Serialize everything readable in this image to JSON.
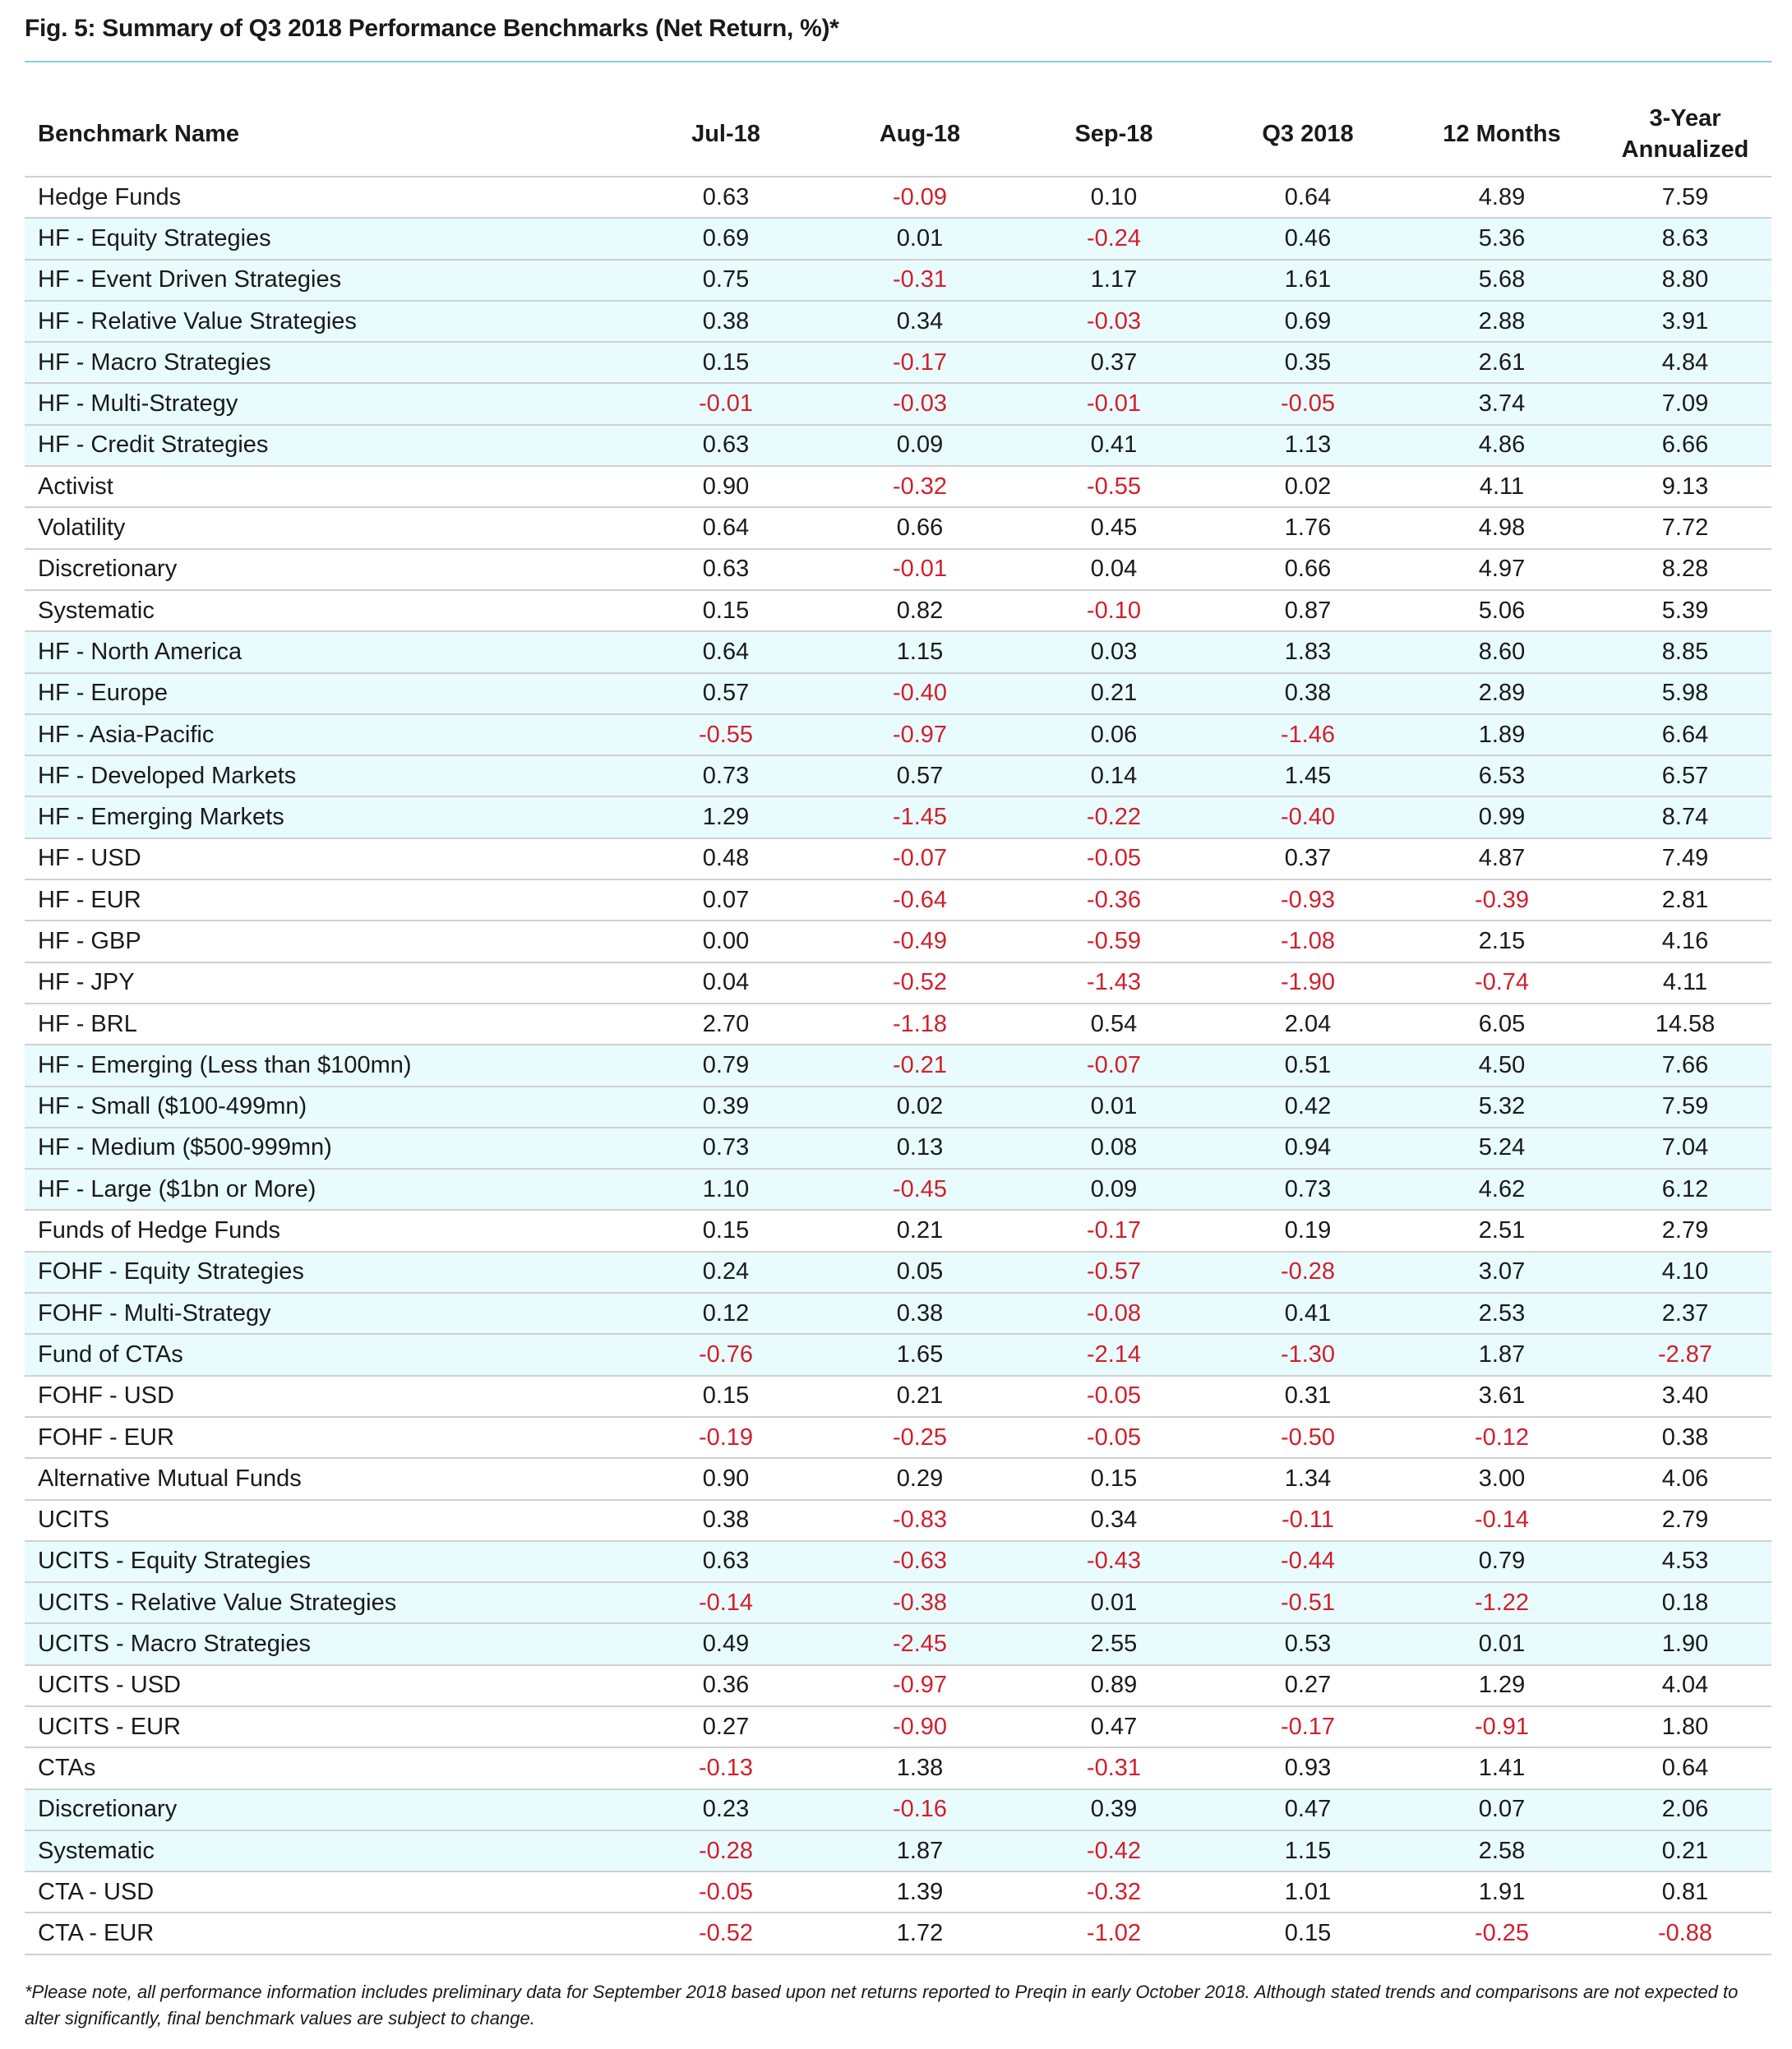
{
  "figure": {
    "title": "Fig. 5: Summary of Q3 2018 Performance Benchmarks (Net Return, %)*",
    "footnote": "*Please note, all performance information includes preliminary data for September 2018 based upon net returns reported to Preqin in early October 2018. Although stated trends and comparisons are not expected to alter significantly, final benchmark values are subject to change."
  },
  "colors": {
    "category_fill": "#80f0f8",
    "light_row": "#e8fbfd",
    "negative_text": "#d21f2b",
    "rule": "#7fd3e0"
  },
  "chart_data": {
    "type": "table",
    "title": "Fig. 5: Summary of Q3 2018 Performance Benchmarks (Net Return, %)*",
    "columns": [
      "Benchmark Name",
      "Jul-18",
      "Aug-18",
      "Sep-18",
      "Q3 2018",
      "12 Months",
      "3-Year Annualized"
    ],
    "header_lines": {
      "name": "Benchmark Name",
      "jul": "Jul-18",
      "aug": "Aug-18",
      "sep": "Sep-18",
      "q3": "Q3 2018",
      "m12": "12 Months",
      "y3_line1": "3-Year",
      "y3_line2": "Annualized"
    },
    "rows": [
      {
        "name": "Hedge Funds",
        "type": "category",
        "values": [
          "0.63",
          "-0.09",
          "0.10",
          "0.64",
          "4.89",
          "7.59"
        ]
      },
      {
        "name": "HF - Equity Strategies",
        "type": "light",
        "values": [
          "0.69",
          "0.01",
          "-0.24",
          "0.46",
          "5.36",
          "8.63"
        ]
      },
      {
        "name": "HF - Event Driven Strategies",
        "type": "light",
        "values": [
          "0.75",
          "-0.31",
          "1.17",
          "1.61",
          "5.68",
          "8.80"
        ]
      },
      {
        "name": "HF - Relative Value Strategies",
        "type": "light",
        "values": [
          "0.38",
          "0.34",
          "-0.03",
          "0.69",
          "2.88",
          "3.91"
        ]
      },
      {
        "name": "HF - Macro Strategies",
        "type": "light",
        "values": [
          "0.15",
          "-0.17",
          "0.37",
          "0.35",
          "2.61",
          "4.84"
        ]
      },
      {
        "name": "HF - Multi-Strategy",
        "type": "light",
        "values": [
          "-0.01",
          "-0.03",
          "-0.01",
          "-0.05",
          "3.74",
          "7.09"
        ]
      },
      {
        "name": "HF - Credit Strategies",
        "type": "light",
        "values": [
          "0.63",
          "0.09",
          "0.41",
          "1.13",
          "4.86",
          "6.66"
        ]
      },
      {
        "name": "Activist",
        "type": "white",
        "values": [
          "0.90",
          "-0.32",
          "-0.55",
          "0.02",
          "4.11",
          "9.13"
        ]
      },
      {
        "name": "Volatility",
        "type": "white",
        "values": [
          "0.64",
          "0.66",
          "0.45",
          "1.76",
          "4.98",
          "7.72"
        ]
      },
      {
        "name": "Discretionary",
        "type": "white",
        "values": [
          "0.63",
          "-0.01",
          "0.04",
          "0.66",
          "4.97",
          "8.28"
        ]
      },
      {
        "name": "Systematic",
        "type": "white",
        "values": [
          "0.15",
          "0.82",
          "-0.10",
          "0.87",
          "5.06",
          "5.39"
        ]
      },
      {
        "name": "HF - North America",
        "type": "light",
        "values": [
          "0.64",
          "1.15",
          "0.03",
          "1.83",
          "8.60",
          "8.85"
        ]
      },
      {
        "name": "HF - Europe",
        "type": "light",
        "values": [
          "0.57",
          "-0.40",
          "0.21",
          "0.38",
          "2.89",
          "5.98"
        ]
      },
      {
        "name": "HF - Asia-Pacific",
        "type": "light",
        "values": [
          "-0.55",
          "-0.97",
          "0.06",
          "-1.46",
          "1.89",
          "6.64"
        ]
      },
      {
        "name": "HF - Developed Markets",
        "type": "light",
        "values": [
          "0.73",
          "0.57",
          "0.14",
          "1.45",
          "6.53",
          "6.57"
        ]
      },
      {
        "name": "HF - Emerging Markets",
        "type": "light",
        "values": [
          "1.29",
          "-1.45",
          "-0.22",
          "-0.40",
          "0.99",
          "8.74"
        ]
      },
      {
        "name": "HF - USD",
        "type": "white",
        "values": [
          "0.48",
          "-0.07",
          "-0.05",
          "0.37",
          "4.87",
          "7.49"
        ]
      },
      {
        "name": "HF - EUR",
        "type": "white",
        "values": [
          "0.07",
          "-0.64",
          "-0.36",
          "-0.93",
          "-0.39",
          "2.81"
        ]
      },
      {
        "name": "HF - GBP",
        "type": "white",
        "values": [
          "0.00",
          "-0.49",
          "-0.59",
          "-1.08",
          "2.15",
          "4.16"
        ]
      },
      {
        "name": "HF - JPY",
        "type": "white",
        "values": [
          "0.04",
          "-0.52",
          "-1.43",
          "-1.90",
          "-0.74",
          "4.11"
        ]
      },
      {
        "name": "HF - BRL",
        "type": "white",
        "values": [
          "2.70",
          "-1.18",
          "0.54",
          "2.04",
          "6.05",
          "14.58"
        ]
      },
      {
        "name": "HF - Emerging (Less than $100mn)",
        "type": "light",
        "values": [
          "0.79",
          "-0.21",
          "-0.07",
          "0.51",
          "4.50",
          "7.66"
        ]
      },
      {
        "name": "HF - Small ($100-499mn)",
        "type": "light",
        "values": [
          "0.39",
          "0.02",
          "0.01",
          "0.42",
          "5.32",
          "7.59"
        ]
      },
      {
        "name": "HF - Medium ($500-999mn)",
        "type": "light",
        "values": [
          "0.73",
          "0.13",
          "0.08",
          "0.94",
          "5.24",
          "7.04"
        ]
      },
      {
        "name": "HF - Large ($1bn or More)",
        "type": "light",
        "values": [
          "1.10",
          "-0.45",
          "0.09",
          "0.73",
          "4.62",
          "6.12"
        ]
      },
      {
        "name": "Funds of Hedge Funds",
        "type": "category",
        "values": [
          "0.15",
          "0.21",
          "-0.17",
          "0.19",
          "2.51",
          "2.79"
        ]
      },
      {
        "name": "FOHF - Equity Strategies",
        "type": "light",
        "values": [
          "0.24",
          "0.05",
          "-0.57",
          "-0.28",
          "3.07",
          "4.10"
        ]
      },
      {
        "name": "FOHF - Multi-Strategy",
        "type": "light",
        "values": [
          "0.12",
          "0.38",
          "-0.08",
          "0.41",
          "2.53",
          "2.37"
        ]
      },
      {
        "name": "Fund of CTAs",
        "type": "light",
        "values": [
          "-0.76",
          "1.65",
          "-2.14",
          "-1.30",
          "1.87",
          "-2.87"
        ]
      },
      {
        "name": "FOHF - USD",
        "type": "white",
        "values": [
          "0.15",
          "0.21",
          "-0.05",
          "0.31",
          "3.61",
          "3.40"
        ]
      },
      {
        "name": "FOHF - EUR",
        "type": "white",
        "values": [
          "-0.19",
          "-0.25",
          "-0.05",
          "-0.50",
          "-0.12",
          "0.38"
        ]
      },
      {
        "name": "Alternative Mutual Funds",
        "type": "category",
        "values": [
          "0.90",
          "0.29",
          "0.15",
          "1.34",
          "3.00",
          "4.06"
        ]
      },
      {
        "name": "UCITS",
        "type": "category",
        "values": [
          "0.38",
          "-0.83",
          "0.34",
          "-0.11",
          "-0.14",
          "2.79"
        ]
      },
      {
        "name": "UCITS - Equity Strategies",
        "type": "light",
        "values": [
          "0.63",
          "-0.63",
          "-0.43",
          "-0.44",
          "0.79",
          "4.53"
        ]
      },
      {
        "name": "UCITS - Relative Value Strategies",
        "type": "light",
        "values": [
          "-0.14",
          "-0.38",
          "0.01",
          "-0.51",
          "-1.22",
          "0.18"
        ]
      },
      {
        "name": "UCITS - Macro Strategies",
        "type": "light",
        "values": [
          "0.49",
          "-2.45",
          "2.55",
          "0.53",
          "0.01",
          "1.90"
        ]
      },
      {
        "name": "UCITS - USD",
        "type": "white",
        "values": [
          "0.36",
          "-0.97",
          "0.89",
          "0.27",
          "1.29",
          "4.04"
        ]
      },
      {
        "name": "UCITS - EUR",
        "type": "white",
        "values": [
          "0.27",
          "-0.90",
          "0.47",
          "-0.17",
          "-0.91",
          "1.80"
        ]
      },
      {
        "name": "CTAs",
        "type": "category",
        "values": [
          "-0.13",
          "1.38",
          "-0.31",
          "0.93",
          "1.41",
          "0.64"
        ]
      },
      {
        "name": "Discretionary",
        "type": "light",
        "values": [
          "0.23",
          "-0.16",
          "0.39",
          "0.47",
          "0.07",
          "2.06"
        ]
      },
      {
        "name": "Systematic",
        "type": "light",
        "values": [
          "-0.28",
          "1.87",
          "-0.42",
          "1.15",
          "2.58",
          "0.21"
        ]
      },
      {
        "name": "CTA - USD",
        "type": "white",
        "values": [
          "-0.05",
          "1.39",
          "-0.32",
          "1.01",
          "1.91",
          "0.81"
        ]
      },
      {
        "name": "CTA - EUR",
        "type": "white",
        "values": [
          "-0.52",
          "1.72",
          "-1.02",
          "0.15",
          "-0.25",
          "-0.88"
        ]
      }
    ]
  }
}
